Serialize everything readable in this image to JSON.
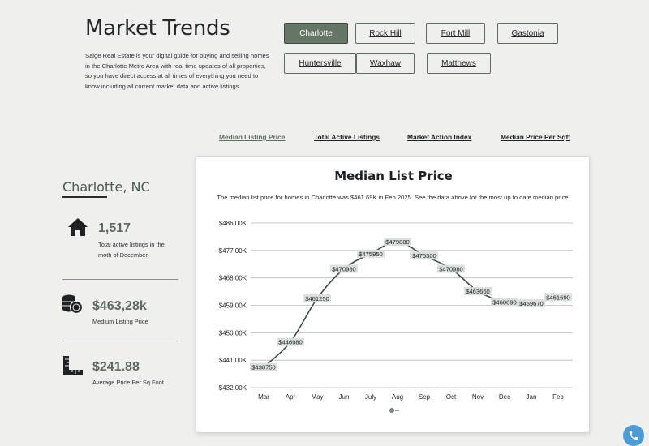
{
  "header": {
    "title": "Market Trends",
    "description": "Saige Real Estate is your digital guide for buying and selling homes in the Charlotte Metro Area with real time updates of all properties, so you have direct access at all times of everything you need to know including all current market data and active listings."
  },
  "cities": [
    {
      "label": "Charlotte",
      "active": true
    },
    {
      "label": "Rock Hill",
      "active": false
    },
    {
      "label": "Fort Mill",
      "active": false
    },
    {
      "label": "Gastonia",
      "active": false
    },
    {
      "label": "Huntersville",
      "active": false
    },
    {
      "label": "Waxhaw",
      "active": false
    },
    {
      "label": "Matthews",
      "active": false
    }
  ],
  "tabs": [
    {
      "label": "Median Listing Price",
      "active": true
    },
    {
      "label": "Total Active Listings",
      "active": false
    },
    {
      "label": "Market Action Index",
      "active": false
    },
    {
      "label": "Median Price Per Sqft",
      "active": false
    }
  ],
  "sidebar": {
    "city_name": "Charlotte, NC",
    "stats": [
      {
        "icon": "house-icon",
        "value": "1,517",
        "label": "Total active listings in the moth of December."
      },
      {
        "icon": "coins-icon",
        "value": "$463,28k",
        "label": "Medium Listing Price"
      },
      {
        "icon": "ruler-icon",
        "value": "$241.88",
        "label": "Average Price Per Sq Foot"
      }
    ]
  },
  "colors": {
    "accent": "#657665",
    "line": "#3f4a45",
    "label_bg": "#d9dedd",
    "grid": "#b9bcbc"
  },
  "chart_data": {
    "type": "line",
    "title": "Median List Price",
    "subtitle": "The median list price for homes in Charlotte was $461.69K in Feb 2025. See the data above for the most up to date median price.",
    "categories": [
      "Mar",
      "Apr",
      "May",
      "Jun",
      "July",
      "Aug",
      "Sep",
      "Oct",
      "Nov",
      "Dec",
      "Jan",
      "Feb"
    ],
    "values": [
      438750,
      446980,
      461250,
      470980,
      475950,
      479880,
      475300,
      470980,
      463660,
      460090,
      459670,
      461690
    ],
    "data_labels": [
      "$438750",
      "$446980",
      "$461250",
      "$470980",
      "$475950",
      "$479880",
      "$475300",
      "$470980",
      "$463660",
      "$460090",
      "$459670",
      "$461690"
    ],
    "ylim": [
      432000,
      486000
    ],
    "yticks": [
      432000,
      441000,
      450000,
      459000,
      468000,
      477000,
      486000
    ],
    "ytick_labels": [
      "$432.00K",
      "$441.00K",
      "$450.00K",
      "$459.00K",
      "$468.00K",
      "$477.00K",
      "$486.00K"
    ],
    "grid": true,
    "legend": "none"
  }
}
